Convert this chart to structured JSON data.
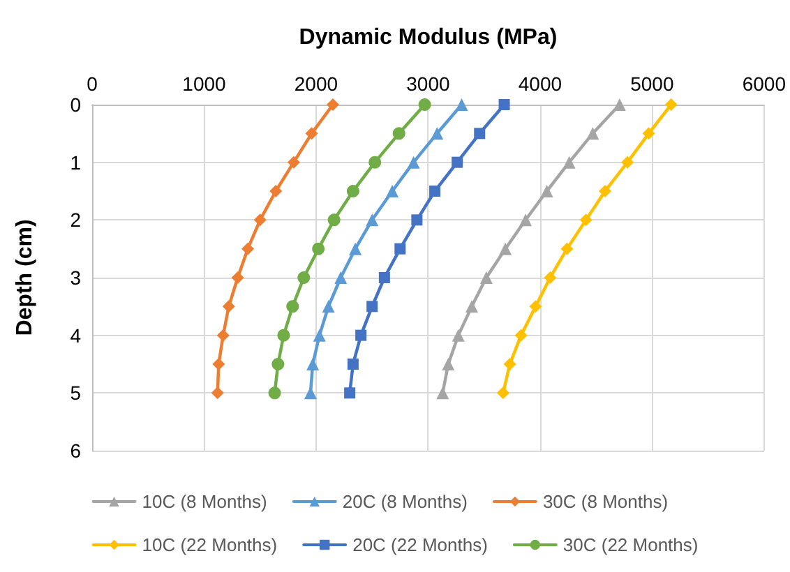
{
  "chart_data": {
    "type": "line",
    "xlabel": "Dynamic Modulus (MPa)",
    "ylabel": "Depth (cm)",
    "xlim": [
      0,
      6000
    ],
    "xticks": [
      0,
      1000,
      2000,
      3000,
      4000,
      5000,
      6000
    ],
    "ylim": [
      6,
      0
    ],
    "yticks": [
      0,
      1,
      2,
      3,
      4,
      5,
      6
    ],
    "grid": true,
    "legend": "bottom",
    "series": [
      {
        "name": "10C (8 Months)",
        "color": "#a5a5a5",
        "marker": "triangle",
        "x": [
          4710,
          4470,
          4260,
          4060,
          3870,
          3690,
          3520,
          3390,
          3270,
          3180,
          3130
        ],
        "values": [
          0,
          0.5,
          1,
          1.5,
          2,
          2.5,
          3,
          3.5,
          4,
          4.5,
          5
        ]
      },
      {
        "name": "20C (8 Months)",
        "color": "#5b9bd5",
        "marker": "triangle",
        "x": [
          3300,
          3080,
          2870,
          2680,
          2500,
          2350,
          2220,
          2110,
          2030,
          1970,
          1950
        ],
        "values": [
          0,
          0.5,
          1,
          1.5,
          2,
          2.5,
          3,
          3.5,
          4,
          4.5,
          5
        ]
      },
      {
        "name": "30C (8 Months)",
        "color": "#ed7d31",
        "marker": "diamond",
        "x": [
          2150,
          1960,
          1800,
          1640,
          1500,
          1390,
          1300,
          1220,
          1170,
          1130,
          1120
        ],
        "values": [
          0,
          0.5,
          1,
          1.5,
          2,
          2.5,
          3,
          3.5,
          4,
          4.5,
          5
        ]
      },
      {
        "name": "10C (22 Months)",
        "color": "#ffc000",
        "marker": "diamond",
        "x": [
          5170,
          4970,
          4780,
          4580,
          4410,
          4240,
          4090,
          3960,
          3830,
          3730,
          3670
        ],
        "values": [
          0,
          0.5,
          1,
          1.5,
          2,
          2.5,
          3,
          3.5,
          4,
          4.5,
          5
        ]
      },
      {
        "name": "20C (22 Months)",
        "color": "#4472c4",
        "marker": "square",
        "x": [
          3680,
          3460,
          3260,
          3060,
          2900,
          2750,
          2610,
          2500,
          2400,
          2330,
          2300
        ],
        "values": [
          0,
          0.5,
          1,
          1.5,
          2,
          2.5,
          3,
          3.5,
          4,
          4.5,
          5
        ]
      },
      {
        "name": "30C (22 Months)",
        "color": "#70ad47",
        "marker": "circle",
        "x": [
          2970,
          2740,
          2525,
          2330,
          2160,
          2020,
          1890,
          1790,
          1710,
          1660,
          1630
        ],
        "values": [
          0,
          0.5,
          1,
          1.5,
          2,
          2.5,
          3,
          3.5,
          4,
          4.5,
          5
        ]
      }
    ]
  }
}
